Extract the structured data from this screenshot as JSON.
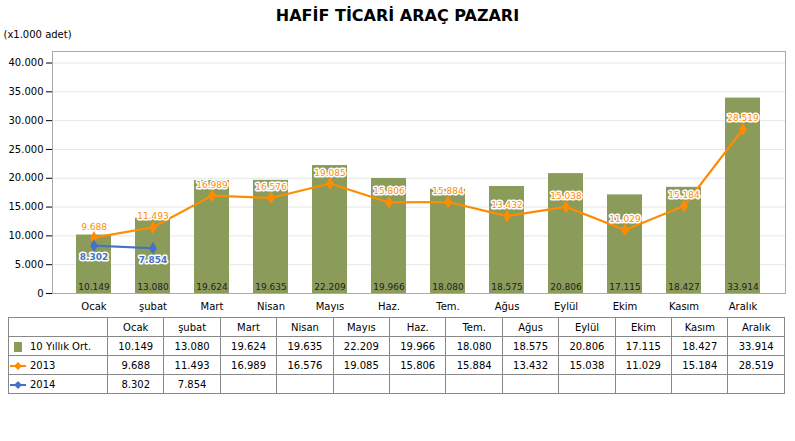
{
  "chart_data": {
    "type": "bar",
    "title": "HAFİF TİCARİ ARAÇ PAZARI",
    "ylabel": "(x1.000 adet)",
    "categories": [
      "Ocak",
      "şubat",
      "Mart",
      "Nisan",
      "Mayıs",
      "Haz.",
      "Tem.",
      "Ağus",
      "Eylül",
      "Ekim",
      "Kasım",
      "Aralık"
    ],
    "series": [
      {
        "name": "10 Yıllık Ort.",
        "type": "bar",
        "color": "#8B9B5A",
        "values": [
          10149,
          13080,
          19624,
          19635,
          22209,
          19966,
          18080,
          18575,
          20806,
          17115,
          18427,
          33914
        ],
        "value_labels": [
          "10.149",
          "13.080",
          "19.624",
          "19.635",
          "22.209",
          "19.966",
          "18.080",
          "18.575",
          "20.806",
          "17.115",
          "18.427",
          "33.914"
        ]
      },
      {
        "name": "2013",
        "type": "line",
        "color": "#FF8C00",
        "marker": "diamond",
        "values": [
          9688,
          11493,
          16989,
          16576,
          19085,
          15806,
          15884,
          13432,
          15038,
          11029,
          15184,
          28519
        ],
        "value_labels": [
          "9.688",
          "11.493",
          "16.989",
          "16.576",
          "19.085",
          "15.806",
          "15.884",
          "13.432",
          "15.038",
          "11.029",
          "15.184",
          "28.519"
        ]
      },
      {
        "name": "2014",
        "type": "line",
        "color": "#4472C4",
        "marker": "diamond",
        "values": [
          8302,
          7854,
          null,
          null,
          null,
          null,
          null,
          null,
          null,
          null,
          null,
          null
        ],
        "value_labels": [
          "8.302",
          "7.854",
          null,
          null,
          null,
          null,
          null,
          null,
          null,
          null,
          null,
          null
        ]
      }
    ],
    "ylim": [
      0,
      42000
    ],
    "yticks": [
      0,
      {
        "value": 5000,
        "label": "5.000"
      },
      {
        "value": 10000,
        "label": "10.000"
      },
      {
        "value": 15000,
        "label": "15.000"
      },
      {
        "value": 20000,
        "label": "20.000"
      },
      {
        "value": 25000,
        "label": "25.000"
      },
      {
        "value": 30000,
        "label": "30.000"
      },
      {
        "value": 35000,
        "label": "35.000"
      },
      {
        "value": 40000,
        "label": "40.000"
      }
    ],
    "grid": true,
    "data_labels": true
  }
}
